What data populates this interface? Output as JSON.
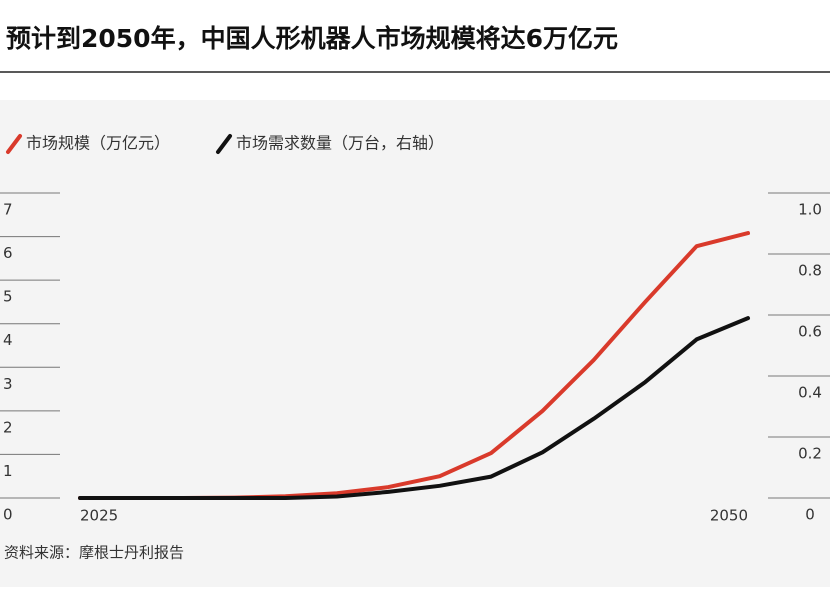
{
  "chart_data": {
    "type": "line",
    "title": "预计到2050年，中国人形机器人市场规模将达6万亿元",
    "source": "资料来源：摩根士丹利报告",
    "categories": [
      "2025",
      null,
      null,
      null,
      null,
      null,
      null,
      null,
      null,
      null,
      null,
      null,
      null,
      "2050"
    ],
    "series": [
      {
        "name": "市场规模（万亿元）",
        "color": "#d93a2b",
        "values": [
          0,
          0,
          0,
          0.01,
          0.04,
          0.11,
          0.25,
          0.5,
          1.03,
          2.0,
          3.17,
          4.5,
          5.78,
          6.08
        ]
      },
      {
        "name": "市场需求数量（万台，右轴）",
        "color": "#111111",
        "axis": "y2",
        "values": [
          0,
          0,
          0,
          0,
          0,
          0.005,
          0.02,
          0.04,
          0.07,
          0.15,
          0.26,
          0.38,
          0.52,
          0.59
        ]
      }
    ],
    "ylim": [
      0,
      7
    ],
    "yticks": [
      0,
      1,
      2,
      3,
      4,
      5,
      6,
      7
    ],
    "y2lim": [
      0,
      1
    ],
    "y2ticks": [
      0,
      0.2,
      0.4,
      0.6,
      0.8,
      {
        "value": 1,
        "label": "1.0"
      }
    ]
  }
}
